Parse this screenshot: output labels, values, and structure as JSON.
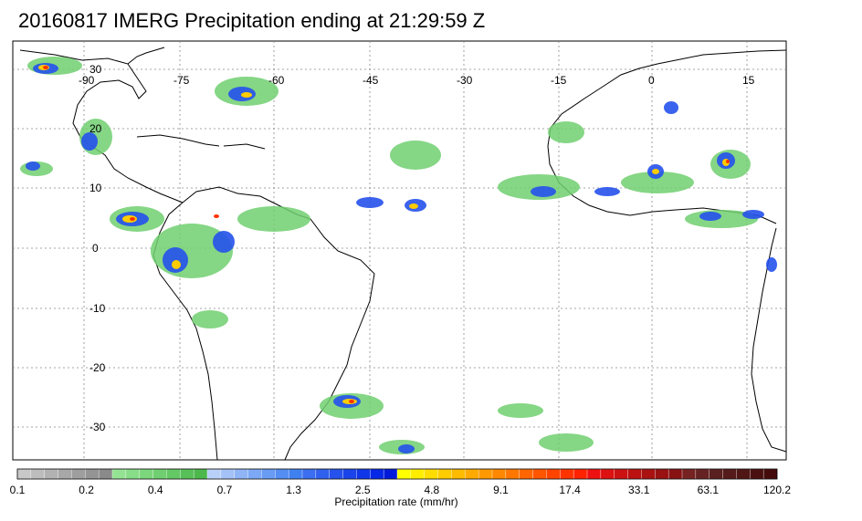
{
  "title": "20160817 IMERG Precipitation ending at 21:29:59 Z",
  "map": {
    "lon_labels": [
      "-90",
      "-75",
      "-60",
      "-45",
      "-30",
      "-15",
      "0",
      "15"
    ],
    "lat_labels": [
      "30",
      "20",
      "10",
      "0",
      "-10",
      "-20",
      "-30"
    ]
  },
  "colorbar": {
    "title": "Precipitation rate (mm/hr)",
    "tick_labels": [
      "0.1",
      "0.2",
      "0.4",
      "0.7",
      "1.3",
      "2.5",
      "4.8",
      "9.1",
      "17.4",
      "33.1",
      "63.1",
      "120.2"
    ],
    "colors": [
      "#c8c8c8",
      "#bdbdbd",
      "#b2b2b2",
      "#a8a8a8",
      "#9e9e9e",
      "#949494",
      "#8a8a8a",
      "#94e394",
      "#88dd88",
      "#7cd67c",
      "#70cf70",
      "#64c864",
      "#58c058",
      "#4cb84c",
      "#b8cff7",
      "#a4c2f7",
      "#90b5f6",
      "#7ca8f5",
      "#689bf4",
      "#548ef3",
      "#4081f2",
      "#3b6ef0",
      "#3060ee",
      "#2552ec",
      "#1a44ea",
      "#0f36e8",
      "#0528e6",
      "#001adc",
      "#ffff00",
      "#ffee00",
      "#ffdd00",
      "#ffcc00",
      "#ffbb00",
      "#ffaa00",
      "#ff9900",
      "#ff8800",
      "#ff7700",
      "#ff6600",
      "#ff5500",
      "#ff4400",
      "#ff3300",
      "#ff2200",
      "#ee1111",
      "#dd1111",
      "#cc1111",
      "#bb1111",
      "#aa1111",
      "#991111",
      "#881111",
      "#772222",
      "#662222",
      "#5a1f1f",
      "#551a1a",
      "#501515",
      "#4a1010",
      "#450b0b"
    ]
  },
  "legend_colors": {
    "land_outline": "#000000",
    "grid": "#888888"
  }
}
